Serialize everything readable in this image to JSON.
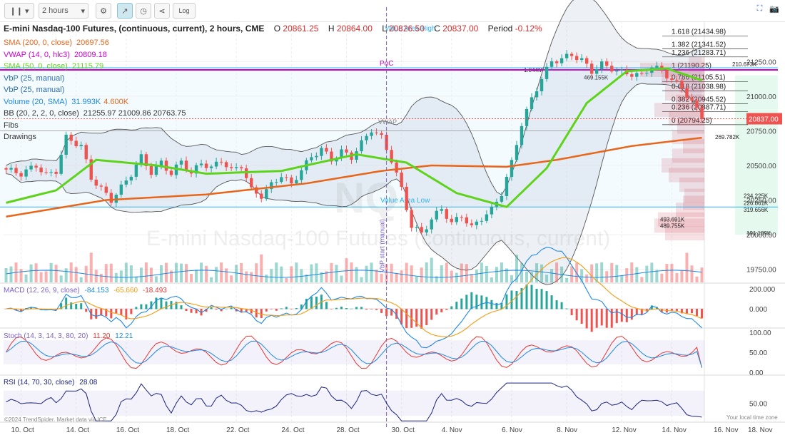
{
  "toolbar": {
    "interval": "2 hours",
    "zoom_label": "Log"
  },
  "header": {
    "title": "E-mini Nasdaq-100 Futures, (continuous, current), 2 hours, CME",
    "o_label": "O",
    "o": "20861.25",
    "h_label": "H",
    "h": "20864.00",
    "l_label": "L",
    "l": "20826.50",
    "c_label": "C",
    "c": "20837.00",
    "period_label": "Period",
    "period": "-0.12%"
  },
  "legend": [
    {
      "label": "SMA (200, 0, close)",
      "value": "20697.56",
      "color": "#e8651a"
    },
    {
      "label": "VWAP (14, 0, hlc3)",
      "value": "20809.18",
      "color": "#cc00cc"
    },
    {
      "label": "SMA (50, 0, close)",
      "value": "21115.79",
      "color": "#5fd31c"
    },
    {
      "label": "VbP (25, manual)",
      "value": "",
      "color": "#2b6cb0"
    },
    {
      "label": "VbP (25, manual)",
      "value": "",
      "color": "#2b6cb0"
    },
    {
      "label": "Volume (20, SMA)",
      "value": "31.993K",
      "value2": "4.600K",
      "color": "#1e88e5"
    },
    {
      "label": "BB (20, 2, 2, 0, close)",
      "value": "21255.97 21009.86 20763.75",
      "color": "#333"
    },
    {
      "label": "Fibs",
      "value": "",
      "color": "#333"
    },
    {
      "label": "Drawings",
      "value": "",
      "color": "#333"
    }
  ],
  "annotations": {
    "poc": "PoC",
    "vwap": "VWAP",
    "value_area_low": "Value Area Low",
    "value_area_high": "Value Area High",
    "vbp_start": "VbP start (manual)",
    "symbol": "NQ",
    "watermark": "E-mini Nasdaq-100 Futures (continuous, current)",
    "attribution": "©2024 TrendSpider. Market data via ICE",
    "timezone": "Your local time zone"
  },
  "price_badge": "20837.00",
  "fibs": [
    {
      "label": "1.618 (21434.98)",
      "value": 21434.98
    },
    {
      "label": "1.382 (21341.52)",
      "value": 21341.52
    },
    {
      "label": "1.236 (21283.71)",
      "value": 21283.71
    },
    {
      "label": "1 (21190.25)",
      "value": 21190.25
    },
    {
      "label": "0.786 (21105.51)",
      "value": 21105.51
    },
    {
      "label": "0.618 (21038.98)",
      "value": 21038.98
    },
    {
      "label": "0.382 (20945.52)",
      "value": 20945.52
    },
    {
      "label": "0.236 (20887.71)",
      "value": 20887.71
    },
    {
      "label": "0 (20794.25)",
      "value": 20794.25
    }
  ],
  "vbp_labels": [
    {
      "text": "1.044M",
      "price": 21190
    },
    {
      "text": "469.155K",
      "price": 21135
    },
    {
      "text": "210.673K",
      "price": 21230
    },
    {
      "text": "269.782K",
      "price": 20705
    },
    {
      "text": "234.225K",
      "price": 20280
    },
    {
      "text": "226.861K",
      "price": 20230
    },
    {
      "text": "319.656K",
      "price": 20180
    },
    {
      "text": "493.691K",
      "price": 20110
    },
    {
      "text": "489.755K",
      "price": 20065
    },
    {
      "text": "191.189K",
      "price": 20010
    }
  ],
  "chart_data": {
    "type": "candlestick",
    "x_tick_labels": [
      "10. Oct",
      "14. Oct",
      "16. Oct",
      "18. Oct",
      "22. Oct",
      "24. Oct",
      "28. Oct",
      "30. Oct",
      "4. Nov",
      "6. Nov",
      "8. Nov",
      "12. Nov",
      "14. Nov",
      "16. Nov",
      "18. Nov"
    ],
    "price_axis_ticks": [
      21250,
      21000,
      20750,
      20500,
      20250,
      20000,
      19750
    ],
    "price_axis_labels": [
      "21250.00",
      "21000.00",
      "20750.00",
      "20500.00",
      "20250.00",
      "20000.00",
      "19750.00"
    ],
    "price_ylim": [
      19650,
      21540
    ],
    "value_area_high": 21205,
    "poc": 21190,
    "value_area_low": 20200,
    "price_path": [
      [
        0,
        20470
      ],
      [
        3,
        20440
      ],
      [
        6,
        20500
      ],
      [
        8,
        20430
      ],
      [
        10,
        20460
      ],
      [
        12,
        20700
      ],
      [
        15,
        20640
      ],
      [
        17,
        20410
      ],
      [
        19,
        20330
      ],
      [
        21,
        20250
      ],
      [
        23,
        20340
      ],
      [
        25,
        20440
      ],
      [
        27,
        20560
      ],
      [
        29,
        20450
      ],
      [
        31,
        20520
      ],
      [
        33,
        20440
      ],
      [
        35,
        20530
      ],
      [
        37,
        20440
      ],
      [
        39,
        20520
      ],
      [
        41,
        20480
      ],
      [
        43,
        20540
      ],
      [
        45,
        20460
      ],
      [
        47,
        20500
      ],
      [
        49,
        20320
      ],
      [
        51,
        20280
      ],
      [
        53,
        20360
      ],
      [
        55,
        20430
      ],
      [
        57,
        20360
      ],
      [
        59,
        20470
      ],
      [
        61,
        20560
      ],
      [
        63,
        20620
      ],
      [
        65,
        20540
      ],
      [
        67,
        20600
      ],
      [
        69,
        20560
      ],
      [
        71,
        20660
      ],
      [
        73,
        20760
      ],
      [
        75,
        20700
      ],
      [
        77,
        20540
      ],
      [
        79,
        20330
      ],
      [
        81,
        20060
      ],
      [
        83,
        20010
      ],
      [
        85,
        20110
      ],
      [
        87,
        20190
      ],
      [
        89,
        20080
      ],
      [
        91,
        20140
      ],
      [
        93,
        20050
      ],
      [
        95,
        20120
      ],
      [
        97,
        20180
      ],
      [
        99,
        20300
      ],
      [
        101,
        20520
      ],
      [
        103,
        20800
      ],
      [
        105,
        20980
      ],
      [
        107,
        21130
      ],
      [
        109,
        21250
      ],
      [
        111,
        21270
      ],
      [
        113,
        21300
      ],
      [
        115,
        21260
      ],
      [
        117,
        21180
      ],
      [
        119,
        21230
      ],
      [
        121,
        21200
      ],
      [
        123,
        21170
      ],
      [
        125,
        21160
      ],
      [
        127,
        21150
      ],
      [
        129,
        21220
      ],
      [
        131,
        21180
      ],
      [
        133,
        21120
      ],
      [
        135,
        21060
      ],
      [
        137,
        20960
      ],
      [
        139,
        20837
      ]
    ],
    "sma200_path": [
      [
        0,
        20130
      ],
      [
        20,
        20250
      ],
      [
        40,
        20290
      ],
      [
        60,
        20370
      ],
      [
        75,
        20460
      ],
      [
        85,
        20500
      ],
      [
        100,
        20490
      ],
      [
        110,
        20540
      ],
      [
        125,
        20640
      ],
      [
        139,
        20700
      ]
    ],
    "sma50_path": [
      [
        0,
        20230
      ],
      [
        10,
        20320
      ],
      [
        18,
        20540
      ],
      [
        30,
        20500
      ],
      [
        40,
        20440
      ],
      [
        55,
        20460
      ],
      [
        70,
        20580
      ],
      [
        80,
        20520
      ],
      [
        90,
        20300
      ],
      [
        100,
        20200
      ],
      [
        108,
        20480
      ],
      [
        116,
        20950
      ],
      [
        124,
        21180
      ],
      [
        132,
        21200
      ],
      [
        139,
        21115
      ]
    ],
    "macd": {
      "label": "MACD (12, 26, 9, close)",
      "macd": "-84.153",
      "signal": "-65.660",
      "hist": "-18.493",
      "axis_labels": [
        "200.000",
        "0.000"
      ]
    },
    "stoch": {
      "label": "Stoch (14, 3, 14, 3, 80, 20)",
      "k": "11.20",
      "d": "12.21",
      "axis_labels": [
        "100.00",
        "50.00",
        "0.00"
      ]
    },
    "rsi": {
      "label": "RSI (14, 70, 30, close)",
      "value": "28.08",
      "axis_labels": [
        "50.00"
      ]
    }
  },
  "colors": {
    "up": "#26a69a",
    "down": "#ef5350",
    "sma200": "#e8651a",
    "sma50": "#5fd31c",
    "vwap": "#cc00cc",
    "value_area": "#29b6f6",
    "badge": "#ef5350"
  }
}
